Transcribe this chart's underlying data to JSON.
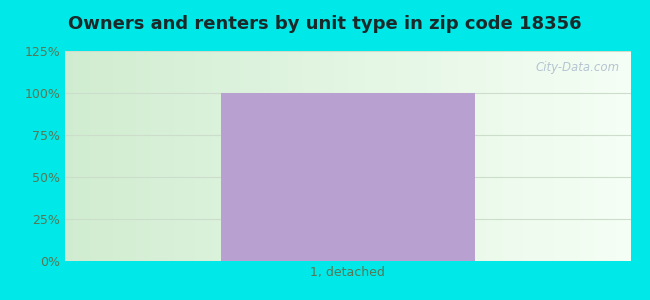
{
  "title": "Owners and renters by unit type in zip code 18356",
  "categories": [
    "1, detached"
  ],
  "values": [
    100
  ],
  "bar_color": "#b8a0d0",
  "bar_width": 0.45,
  "ylim": [
    0,
    125
  ],
  "yticks": [
    0,
    25,
    50,
    75,
    100,
    125
  ],
  "ytick_labels": [
    "0%",
    "25%",
    "50%",
    "75%",
    "100%",
    "125%"
  ],
  "outer_bg_color": "#00e8e8",
  "title_fontsize": 13,
  "tick_fontsize": 9,
  "tick_color": "#557755",
  "watermark_text": "City-Data.com",
  "watermark_color": "#aabbcc",
  "grid_color": "#ccddcc",
  "bg_color_left": "#d0ecd0",
  "bg_color_right": "#f5fef5"
}
